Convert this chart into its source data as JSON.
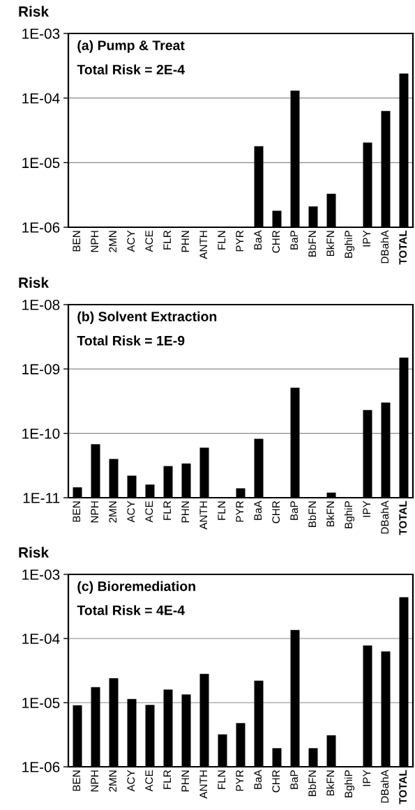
{
  "chart_data": [
    {
      "type": "bar",
      "title": "(a) Pump & Treat",
      "subtitle": "Total Risk = 2E-4",
      "ylabel": "Risk",
      "log": true,
      "grid": "y",
      "color": "#000000",
      "categories": [
        "BEN",
        "NPH",
        "2MN",
        "ACY",
        "ACE",
        "FLR",
        "PHN",
        "ANTH",
        "FLN",
        "PYR",
        "BaA",
        "CHR",
        "BaP",
        "BbFN",
        "BkFN",
        "BghiP",
        "IPY",
        "DBahA",
        "TOTAL"
      ],
      "values": [
        null,
        null,
        null,
        null,
        null,
        null,
        null,
        null,
        null,
        null,
        1.8e-05,
        1.8e-06,
        0.00013,
        2.1e-06,
        3.3e-06,
        null,
        2.05e-05,
        6.3e-05,
        0.00024
      ],
      "ylim": [
        1e-06,
        0.001
      ],
      "yticks": [
        {
          "value": 1e-06,
          "label": "1E-06"
        },
        {
          "value": 1e-05,
          "label": "1E-05"
        },
        {
          "value": 0.0001,
          "label": "1E-04"
        },
        {
          "value": 0.001,
          "label": "1E-03"
        }
      ]
    },
    {
      "type": "bar",
      "title": "(b) Solvent Extraction",
      "subtitle": "Total Risk = 1E-9",
      "ylabel": "Risk",
      "log": true,
      "grid": "y",
      "color": "#000000",
      "categories": [
        "BEN",
        "NPH",
        "2MN",
        "ACY",
        "ACE",
        "FLR",
        "PHN",
        "ANTH",
        "FLN",
        "PYR",
        "BaA",
        "CHR",
        "BaP",
        "BbFN",
        "BkFN",
        "BghiP",
        "IPY",
        "DBahA",
        "TOTAL"
      ],
      "values": [
        1.45e-11,
        6.8e-11,
        4e-11,
        2.2e-11,
        1.6e-11,
        3.1e-11,
        3.4e-11,
        6e-11,
        null,
        1.4e-11,
        8.2e-11,
        null,
        5.1e-10,
        null,
        1.2e-11,
        null,
        2.3e-10,
        3e-10,
        1.5e-09
      ],
      "ylim": [
        1e-11,
        1e-08
      ],
      "yticks": [
        {
          "value": 1e-11,
          "label": "1E-11"
        },
        {
          "value": 1e-10,
          "label": "1E-10"
        },
        {
          "value": 1e-09,
          "label": "1E-09"
        },
        {
          "value": 1e-08,
          "label": "1E-08"
        }
      ]
    },
    {
      "type": "bar",
      "title": "(c) Bioremediation",
      "subtitle": "Total Risk = 4E-4",
      "ylabel": "Risk",
      "log": true,
      "grid": "y",
      "color": "#000000",
      "categories": [
        "BEN",
        "NPH",
        "2MN",
        "ACY",
        "ACE",
        "FLR",
        "PHN",
        "ANTH",
        "FLN",
        "PYR",
        "BaA",
        "CHR",
        "BaP",
        "BbFN",
        "BkFN",
        "BghiP",
        "IPY",
        "DBahA",
        "TOTAL"
      ],
      "values": [
        9.1e-06,
        1.75e-05,
        2.4e-05,
        1.14e-05,
        9.2e-06,
        1.6e-05,
        1.34e-05,
        2.8e-05,
        3.2e-06,
        4.8e-06,
        2.2e-05,
        1.95e-06,
        0.000136,
        1.95e-06,
        3.1e-06,
        null,
        7.8e-05,
        6.3e-05,
        0.00044
      ],
      "ylim": [
        1e-06,
        0.001
      ],
      "yticks": [
        {
          "value": 1e-06,
          "label": "1E-06"
        },
        {
          "value": 1e-05,
          "label": "1E-05"
        },
        {
          "value": 0.0001,
          "label": "1E-04"
        },
        {
          "value": 0.001,
          "label": "1E-03"
        }
      ]
    }
  ]
}
